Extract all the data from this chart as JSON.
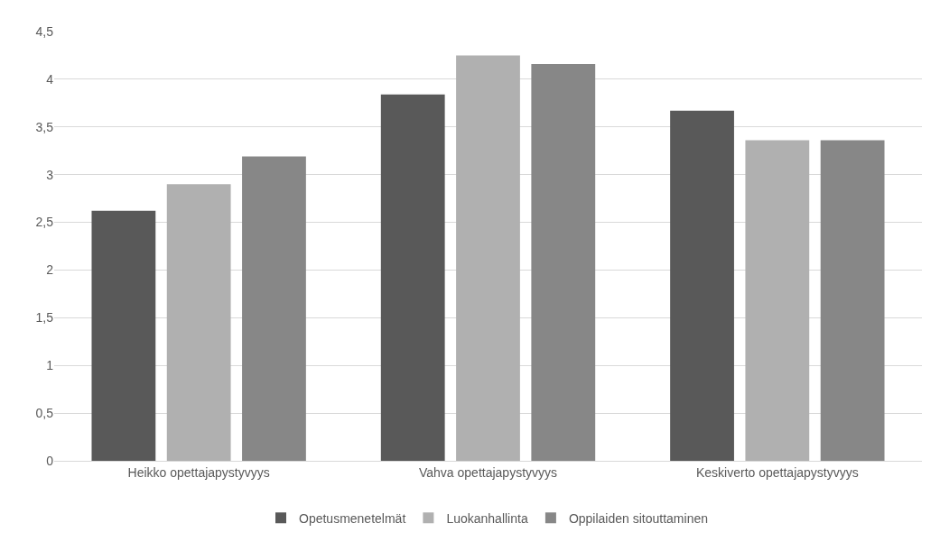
{
  "chart_data": {
    "type": "bar",
    "categories": [
      "Heikko opettajapystyvyys",
      "Vahva opettajapystyvyys",
      "Keskiverto opettajapystyvyys"
    ],
    "series": [
      {
        "name": "Opetusmenetelmät",
        "color": "#595959",
        "values": [
          2.62,
          3.84,
          3.67
        ]
      },
      {
        "name": "Luokanhallinta",
        "color": "#b0b0b0",
        "values": [
          2.9,
          4.25,
          3.36
        ]
      },
      {
        "name": "Oppilaiden sitouttaminen",
        "color": "#878787",
        "values": [
          3.19,
          4.16,
          3.36
        ]
      }
    ],
    "ylim": [
      0,
      4.5
    ],
    "yticks": [
      0,
      {
        "value": 0.5,
        "label": "0,5"
      },
      1,
      {
        "value": 1.5,
        "label": "1,5"
      },
      2,
      {
        "value": 2.5,
        "label": "2,5"
      },
      3,
      {
        "value": 3.5,
        "label": "3,5"
      },
      4,
      {
        "value": 4.5,
        "label": "4,5"
      }
    ],
    "grid": "y",
    "legend": "bottom"
  }
}
